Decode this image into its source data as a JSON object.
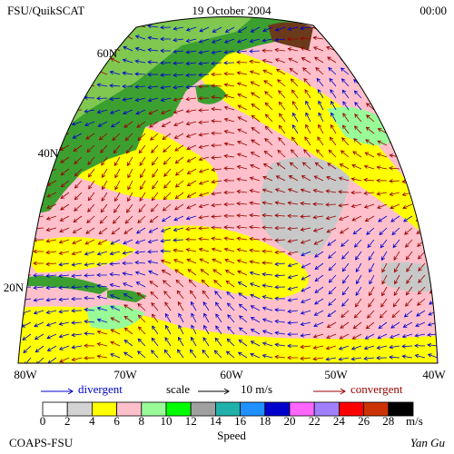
{
  "header": {
    "left": "FSU/QuikSCAT",
    "center": "19 October 2004",
    "right": "00:00"
  },
  "map": {
    "lat_labels": [
      "60N",
      "40N",
      "20N"
    ],
    "lon_labels": [
      "80W",
      "70W",
      "60W",
      "50W",
      "40W"
    ]
  },
  "legend": {
    "divergent": "divergent",
    "scale": "scale",
    "scale_value": "10 m/s",
    "convergent": "convergent"
  },
  "colorbar": {
    "labels": [
      "0",
      "2",
      "4",
      "6",
      "8",
      "10",
      "12",
      "14",
      "16",
      "18",
      "20",
      "22",
      "24",
      "26",
      "28"
    ],
    "unit": "m/s",
    "title": "Speed",
    "colors": [
      "#ffffff",
      "#d3d3d3",
      "#ffff00",
      "#ffc0cb",
      "#98fb98",
      "#00ff00",
      "#a0a0a0",
      "#20b2aa",
      "#1e90ff",
      "#0000cd",
      "#ff66ff",
      "#a080ff",
      "#ff0000",
      "#cc3300",
      "#000000"
    ]
  },
  "footer": {
    "left": "COAPS-FSU",
    "right": "Yan Gu"
  }
}
